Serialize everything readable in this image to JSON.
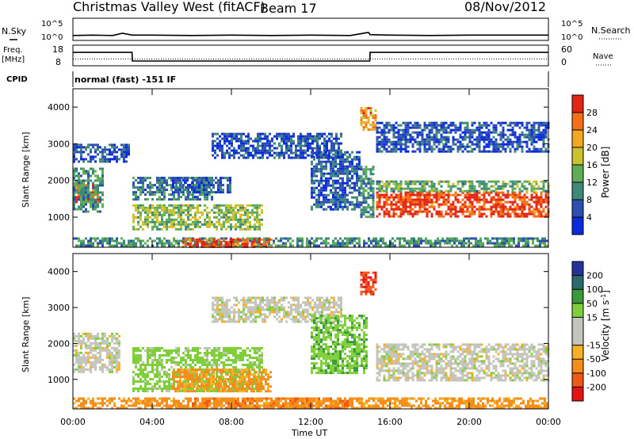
{
  "header": {
    "station": "Christmas Valley West (fitACF)",
    "beam": "Beam 17",
    "date": "08/Nov/2012"
  },
  "strip_labels": {
    "nsky": "N.Sky",
    "nsky_ticks": [
      "10^5",
      "10^0"
    ],
    "nsearch": "N.Search",
    "nsearch_ticks": [
      "10^5",
      "10^0"
    ],
    "freq": "Freq.",
    "freq_unit": "[MHz]",
    "freq_ticks": [
      "18",
      "8"
    ],
    "nave": "Nave",
    "nave_ticks": [
      "60",
      "0"
    ],
    "cpid": "CPID",
    "cpid_value": "normal (fast) -151 IF"
  },
  "panels": {
    "power": {
      "ylabel": "Slant Range [km]",
      "cbar_label": "Power [dB]"
    },
    "velocity": {
      "ylabel": "Slant Range [km]",
      "cbar_label_main": "Velocity [m s",
      "cbar_label_exp": "-1",
      "cbar_label_end": "]"
    }
  },
  "colors": {
    "power_scale": [
      "#0a2bdb",
      "#2d4fb0",
      "#3e8a78",
      "#5fae57",
      "#c9c22c",
      "#f4a81f",
      "#f46f16",
      "#e32513"
    ],
    "velocity_scale": [
      "#e51313",
      "#f05818",
      "#f48d1a",
      "#f5b024",
      "#c4c4bc",
      "#c4c4bc",
      "#7fcf3b",
      "#3a9a3a",
      "#2b6a6a",
      "#24329c"
    ]
  },
  "chart_data": [
    {
      "type": "line",
      "name": "N.Sky / N.Search strip",
      "x": [
        "00:00",
        "01:00",
        "02:00",
        "02:30",
        "03:00",
        "04:00",
        "06:00",
        "08:00",
        "10:00",
        "12:00",
        "14:00",
        "14:55",
        "15:00",
        "16:00",
        "18:00",
        "20:00",
        "22:00",
        "24:00"
      ],
      "series": [
        {
          "name": "N.Sky",
          "values": [
            1.1,
            1.2,
            1.1,
            1.6,
            1.2,
            1.2,
            1.1,
            1.2,
            1.1,
            1.2,
            1.1,
            1.8,
            1.3,
            1.2,
            1.1,
            1.2,
            1.2,
            1.2
          ]
        }
      ],
      "ylim": [
        0,
        5
      ]
    },
    {
      "type": "line",
      "name": "Freq / Nave strip",
      "x": [
        "00:00",
        "02:59",
        "03:00",
        "14:59",
        "15:00",
        "24:00"
      ],
      "series": [
        {
          "name": "Freq.",
          "values": [
            14.5,
            14.5,
            10.3,
            10.3,
            14.5,
            14.5
          ]
        },
        {
          "name": "Nave",
          "values": [
            20,
            20,
            20,
            20,
            20,
            20
          ]
        }
      ],
      "ylim": [
        8,
        18
      ]
    },
    {
      "type": "heatmap",
      "title": "Power",
      "xlabel": "Time UT",
      "ylabel": "Slant Range [km]",
      "xlim": [
        0,
        24
      ],
      "ylim": [
        180,
        4500
      ],
      "x_ticks": [
        "00:00",
        "04:00",
        "08:00",
        "12:00",
        "16:00",
        "20:00",
        "00:00"
      ],
      "y_ticks": [
        1000,
        2000,
        3000,
        4000
      ],
      "colorbar": {
        "label": "Power [dB]",
        "ticks": [
          4,
          8,
          12,
          16,
          20,
          24,
          28
        ],
        "range": [
          0,
          30
        ]
      },
      "regions": [
        {
          "t": [
            0.0,
            1.3
          ],
          "r": [
            1400,
            1900
          ],
          "value": 26
        },
        {
          "t": [
            0.0,
            1.5
          ],
          "r": [
            1150,
            2350
          ],
          "value": 10
        },
        {
          "t": [
            0.0,
            2.8
          ],
          "r": [
            2500,
            3000
          ],
          "value": 5
        },
        {
          "t": [
            3.0,
            9.6
          ],
          "r": [
            700,
            1350
          ],
          "value": 14
        },
        {
          "t": [
            3.0,
            7.0
          ],
          "r": [
            1500,
            2100
          ],
          "value": 8
        },
        {
          "t": [
            5.0,
            8.0
          ],
          "r": [
            1700,
            2100
          ],
          "value": 6
        },
        {
          "t": [
            7.0,
            13.6
          ],
          "r": [
            2600,
            3300
          ],
          "value": 5
        },
        {
          "t": [
            12.0,
            14.5
          ],
          "r": [
            1200,
            2800
          ],
          "value": 6
        },
        {
          "t": [
            14.5,
            15.2
          ],
          "r": [
            1000,
            2400
          ],
          "value": 10
        },
        {
          "t": [
            14.5,
            15.3
          ],
          "r": [
            3400,
            4000
          ],
          "value": 22
        },
        {
          "t": [
            15.3,
            24.0
          ],
          "r": [
            1000,
            1700
          ],
          "value": 27
        },
        {
          "t": [
            15.3,
            24.0
          ],
          "r": [
            1700,
            2000
          ],
          "value": 12
        },
        {
          "t": [
            15.3,
            24.0
          ],
          "r": [
            2800,
            3600
          ],
          "value": 5
        },
        {
          "t": [
            0.0,
            24.0
          ],
          "r": [
            200,
            450
          ],
          "value": 10
        },
        {
          "t": [
            5.5,
            10.0
          ],
          "r": [
            200,
            420
          ],
          "value": 26
        }
      ]
    },
    {
      "type": "heatmap",
      "title": "Velocity",
      "xlabel": "Time UT",
      "ylabel": "Slant Range [km]",
      "xlim": [
        0,
        24
      ],
      "ylim": [
        180,
        4500
      ],
      "x_ticks": [
        "00:00",
        "04:00",
        "08:00",
        "12:00",
        "16:00",
        "20:00",
        "00:00"
      ],
      "y_ticks": [
        1000,
        2000,
        3000,
        4000
      ],
      "colorbar": {
        "label": "Velocity [m s-1]",
        "ticks": [
          -200,
          -100,
          -50,
          -15,
          15,
          50,
          100,
          200
        ],
        "range": [
          -250,
          250
        ]
      },
      "regions": [
        {
          "t": [
            0.0,
            2.4
          ],
          "r": [
            1200,
            2300
          ],
          "value": 0
        },
        {
          "t": [
            3.0,
            9.6
          ],
          "r": [
            700,
            1900
          ],
          "value": 30
        },
        {
          "t": [
            5.0,
            10.0
          ],
          "r": [
            700,
            1300
          ],
          "value": -60
        },
        {
          "t": [
            7.0,
            13.6
          ],
          "r": [
            2600,
            3300
          ],
          "value": 0
        },
        {
          "t": [
            12.0,
            14.8
          ],
          "r": [
            1200,
            2800
          ],
          "value": 40
        },
        {
          "t": [
            14.5,
            15.3
          ],
          "r": [
            3400,
            4000
          ],
          "value": -200
        },
        {
          "t": [
            15.3,
            24.0
          ],
          "r": [
            1000,
            2000
          ],
          "value": 0
        },
        {
          "t": [
            0.0,
            24.0
          ],
          "r": [
            200,
            500
          ],
          "value": -60
        },
        {
          "t": [
            6.0,
            14.0
          ],
          "r": [
            200,
            500
          ],
          "value": -90
        }
      ]
    }
  ]
}
